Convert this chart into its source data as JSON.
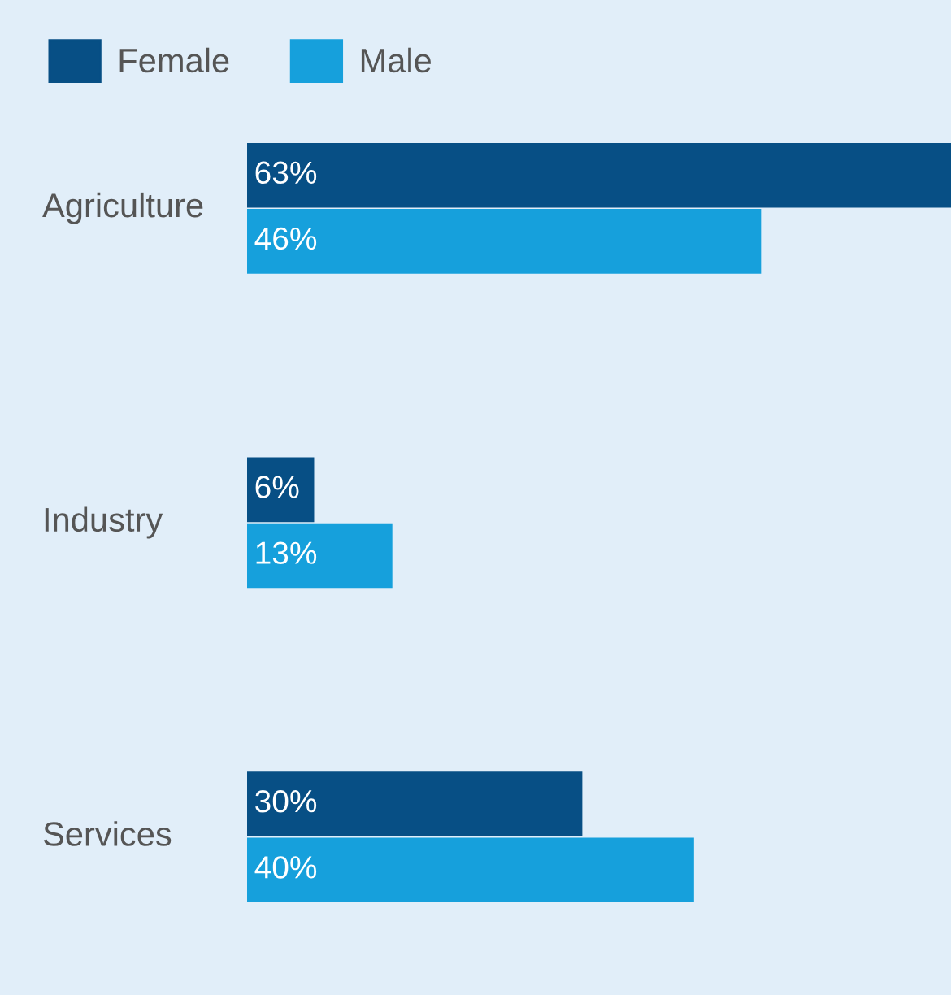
{
  "chart_data": {
    "type": "bar",
    "orientation": "horizontal",
    "categories": [
      "Agriculture",
      "Industry",
      "Services"
    ],
    "series": [
      {
        "name": "Female",
        "color": "#074f85",
        "values": [
          63,
          6,
          30
        ],
        "value_labels": [
          "63%",
          "6%",
          "30%"
        ]
      },
      {
        "name": "Male",
        "color": "#16a0dc",
        "values": [
          46,
          13,
          40
        ],
        "value_labels": [
          "46%",
          "13%",
          "40%"
        ]
      }
    ],
    "legend": "top left"
  }
}
